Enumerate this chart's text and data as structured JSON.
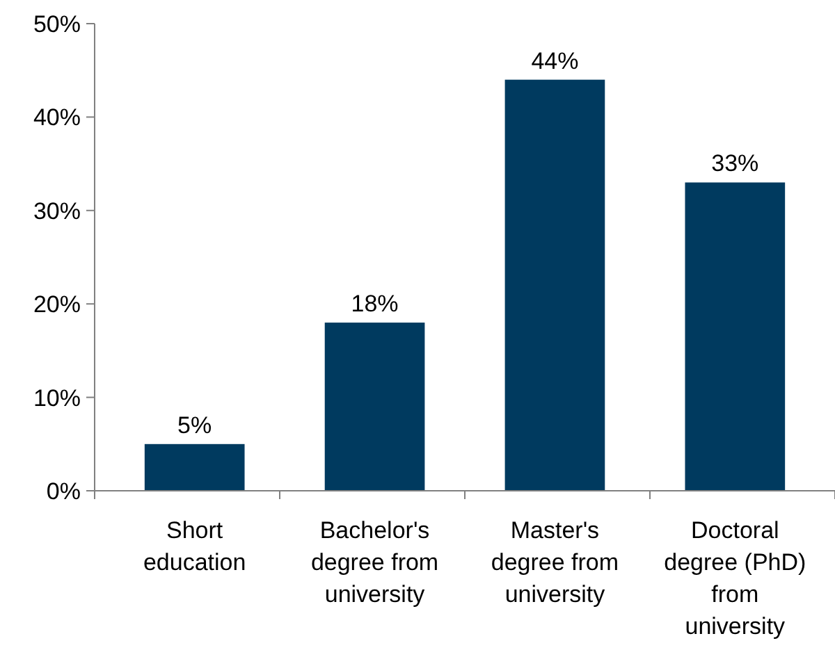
{
  "chart_data": {
    "type": "bar",
    "categories": [
      "Short education",
      "Bachelor's degree from university",
      "Master's degree from university",
      "Doctoral degree (PhD) from university"
    ],
    "values": [
      5,
      18,
      44,
      33
    ],
    "color": "#003a5f",
    "ylim": [
      0,
      50
    ],
    "yticks": [
      {
        "value": 0,
        "label": "0%"
      },
      {
        "value": 10,
        "label": "10%"
      },
      {
        "value": 20,
        "label": "20%"
      },
      {
        "value": 30,
        "label": "30%"
      },
      {
        "value": 40,
        "label": "40%"
      },
      {
        "value": 50,
        "label": "50%"
      }
    ],
    "value_labels": [
      "5%",
      "18%",
      "44%",
      "33%"
    ]
  }
}
